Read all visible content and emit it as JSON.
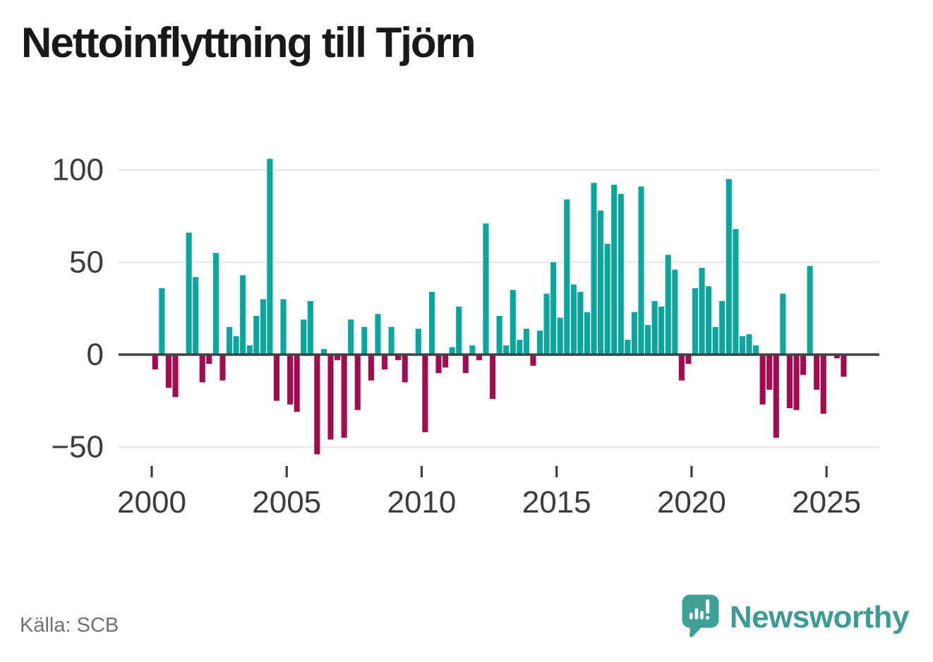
{
  "header": {
    "title": "Nettoinflyttning till Tjörn"
  },
  "footer": {
    "source": "Källa: SCB"
  },
  "branding": {
    "logo_text": "Newsworthy",
    "logo_icon": "speech-bubble-with-bar-chart-and-exclamation"
  },
  "colors": {
    "title_text": "#191919",
    "axis_text": "#3b3b3b",
    "gridline": "#e8e8e8",
    "zero_line": "#414141",
    "source_text": "#707070",
    "brand_teal": "#3d9b94",
    "background": "#ffffff"
  },
  "chart_data": {
    "type": "bar",
    "title": "Nettoinflyttning till Tjörn",
    "frequency": "quarterly",
    "start_period": "2000 Q1",
    "end_period": "2025 Q3",
    "xlabel": "",
    "ylabel": "",
    "x_tick_years": [
      2000,
      2005,
      2010,
      2015,
      2020,
      2025
    ],
    "x_tick_labels": [
      "2000",
      "2005",
      "2010",
      "2015",
      "2020",
      "2025"
    ],
    "y_ticks": [
      100,
      50,
      0,
      -50
    ],
    "y_tick_labels": [
      "100",
      "50",
      "0",
      "−50"
    ],
    "ylim": [
      -60,
      110
    ],
    "grid": true,
    "legend_position": "none",
    "positive_color": "#0aa59c",
    "negative_color": "#a00c4d",
    "values": [
      -8,
      36,
      -18,
      -23,
      0,
      66,
      42,
      -15,
      -5,
      55,
      -14,
      15,
      10,
      43,
      5,
      21,
      30,
      106,
      -25,
      30,
      -27,
      -31,
      19,
      29,
      -54,
      3,
      -46,
      -3,
      -45,
      19,
      -30,
      15,
      -14,
      22,
      -8,
      15,
      -3,
      -15,
      0,
      14,
      -42,
      34,
      -10,
      -7,
      4,
      26,
      -10,
      5,
      -3,
      71,
      -24,
      21,
      5,
      35,
      8,
      14,
      -6,
      13,
      33,
      50,
      20,
      84,
      38,
      34,
      23,
      93,
      78,
      60,
      92,
      87,
      8,
      23,
      91,
      16,
      29,
      26,
      54,
      46,
      -14,
      -5,
      36,
      47,
      37,
      15,
      29,
      95,
      68,
      10,
      11,
      5,
      -27,
      -19,
      -45,
      33,
      -29,
      -30,
      -11,
      48,
      -19,
      -32,
      0,
      -2,
      -12
    ]
  }
}
